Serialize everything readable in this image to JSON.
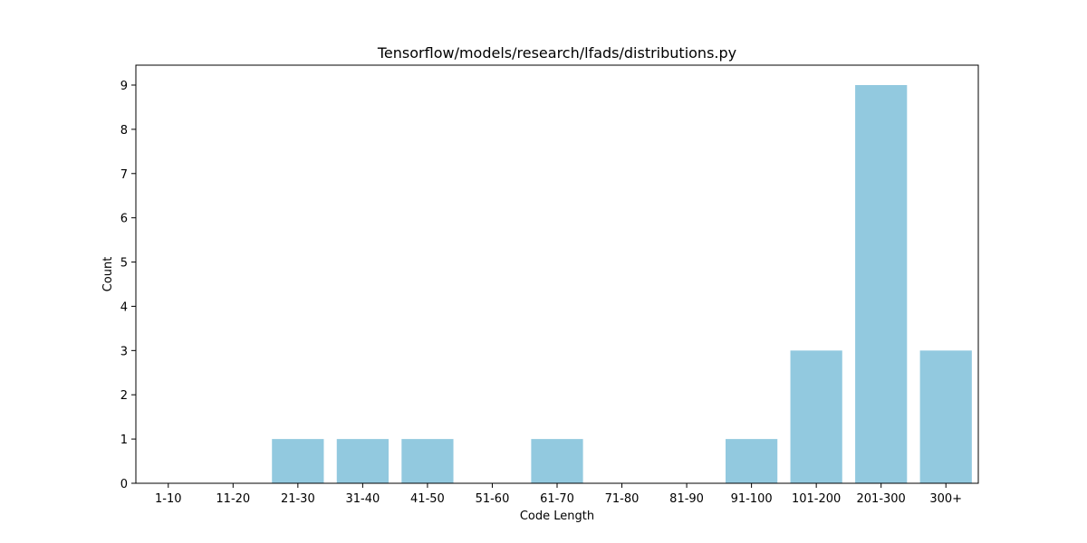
{
  "chart_data": {
    "type": "bar",
    "title": "Tensorflow/models/research/lfads/distributions.py",
    "xlabel": "Code Length",
    "ylabel": "Count",
    "categories": [
      "1-10",
      "11-20",
      "21-30",
      "31-40",
      "41-50",
      "51-60",
      "61-70",
      "71-80",
      "81-90",
      "91-100",
      "101-200",
      "201-300",
      "300+"
    ],
    "values": [
      0,
      0,
      1,
      1,
      1,
      0,
      1,
      0,
      0,
      1,
      3,
      9,
      3
    ],
    "ylim": [
      0,
      9.45
    ],
    "yticks": [
      0,
      1,
      2,
      3,
      4,
      5,
      6,
      7,
      8,
      9
    ],
    "bar_color": "#92c9df",
    "grid": false,
    "legend": "none"
  }
}
